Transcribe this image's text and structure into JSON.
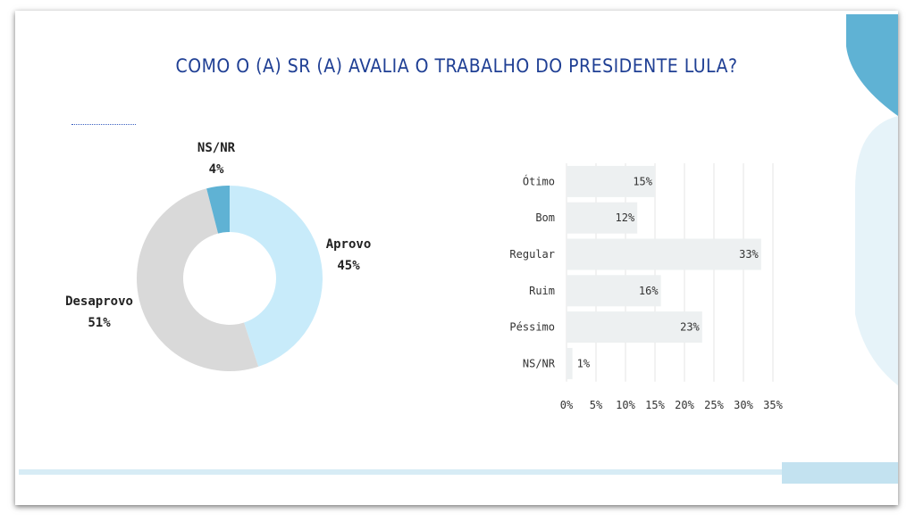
{
  "title": "COMO O (A) SR (A) AVALIA O TRABALHO DO PRESIDENTE LULA?",
  "colors": {
    "title": "#1f3f94",
    "aprovo": "#c8ebfa",
    "desaprovo": "#d9d9d9",
    "nsnr": "#5fb2d4",
    "bar": "#edf0f1",
    "accent": "#5fb2d4"
  },
  "chart_data": [
    {
      "type": "pie",
      "donut": true,
      "slices": [
        {
          "label": "Aprovo",
          "value": 45,
          "value_label": "45%"
        },
        {
          "label": "Desaprovo",
          "value": 51,
          "value_label": "51%"
        },
        {
          "label": "NS/NR",
          "value": 4,
          "value_label": "4%"
        }
      ]
    },
    {
      "type": "bar",
      "orientation": "horizontal",
      "categories": [
        "Ótimo",
        "Bom",
        "Regular",
        "Ruim",
        "Péssimo",
        "NS/NR"
      ],
      "values": [
        15,
        12,
        33,
        16,
        23,
        1
      ],
      "value_labels": [
        "15%",
        "12%",
        "33%",
        "16%",
        "23%",
        "1%"
      ],
      "xlim": [
        0,
        35
      ],
      "xticks": [
        "0%",
        "5%",
        "10%",
        "15%",
        "20%",
        "25%",
        "30%",
        "35%"
      ],
      "grid": true
    }
  ]
}
